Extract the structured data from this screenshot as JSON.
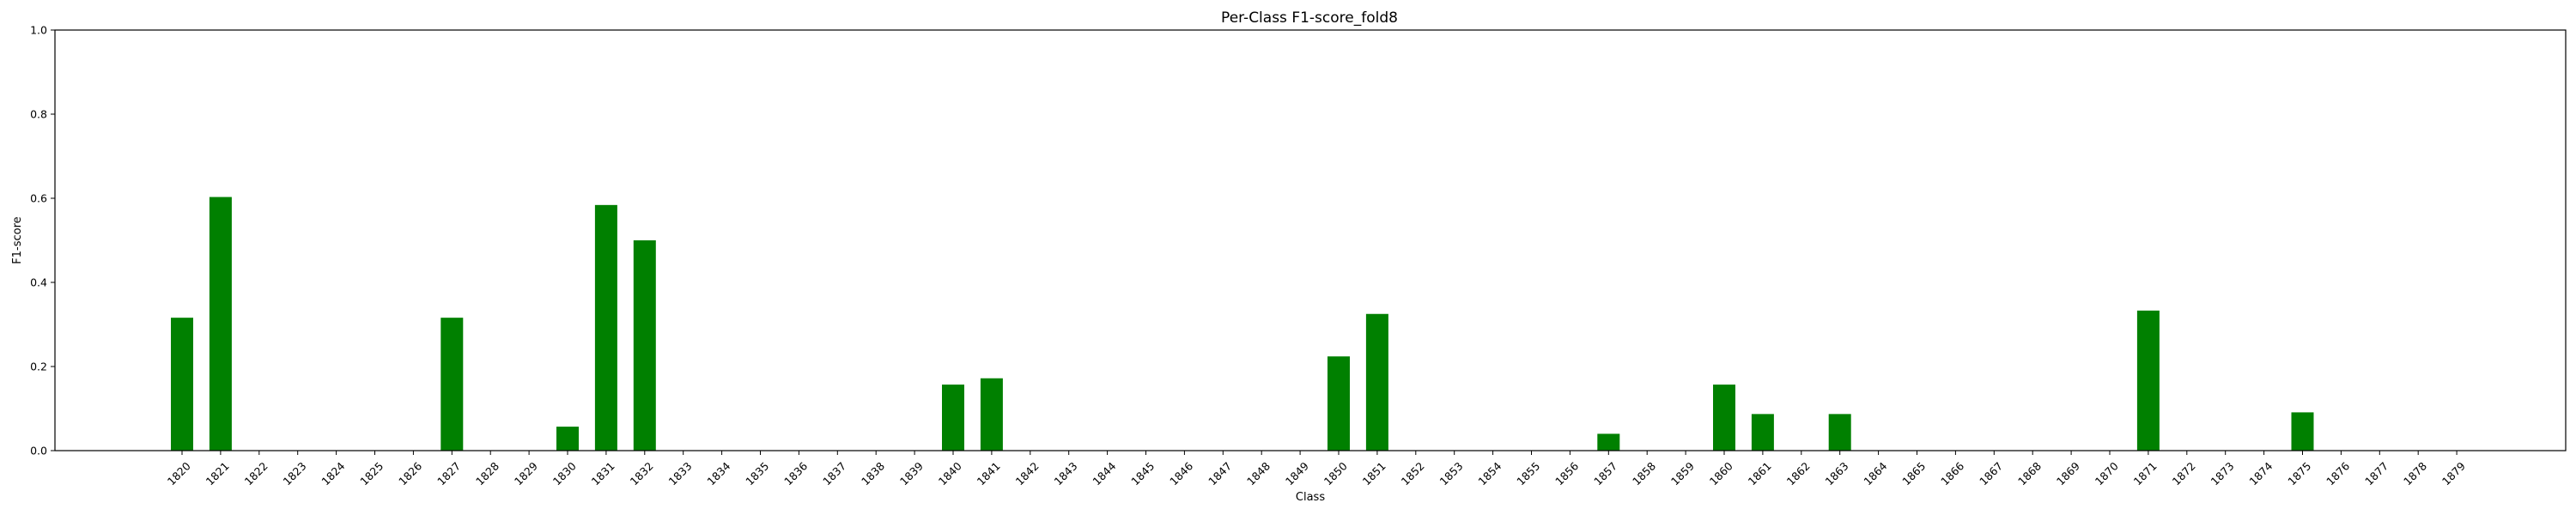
{
  "chart_data": {
    "type": "bar",
    "title": "Per-Class F1-score_fold8",
    "xlabel": "Class",
    "ylabel": "F1-score",
    "ylim": [
      0,
      1.0
    ],
    "yticks": [
      "0.0",
      "0.2",
      "0.4",
      "0.6",
      "0.8",
      "1.0"
    ],
    "grid": false,
    "bar_color": "#008000",
    "categories": [
      "1820",
      "1821",
      "1822",
      "1823",
      "1824",
      "1825",
      "1826",
      "1827",
      "1828",
      "1829",
      "1830",
      "1831",
      "1832",
      "1833",
      "1834",
      "1835",
      "1836",
      "1837",
      "1838",
      "1839",
      "1840",
      "1841",
      "1842",
      "1843",
      "1844",
      "1845",
      "1846",
      "1847",
      "1848",
      "1849",
      "1850",
      "1851",
      "1852",
      "1853",
      "1854",
      "1855",
      "1856",
      "1857",
      "1858",
      "1859",
      "1860",
      "1861",
      "1862",
      "1863",
      "1864",
      "1865",
      "1866",
      "1867",
      "1868",
      "1869",
      "1870",
      "1871",
      "1872",
      "1873",
      "1874",
      "1875",
      "1876",
      "1877",
      "1878",
      "1879"
    ],
    "values": [
      0.316,
      0.603,
      0,
      0,
      0,
      0,
      0,
      0.316,
      0,
      0,
      0.057,
      0.584,
      0.5,
      0,
      0,
      0,
      0,
      0,
      0,
      0,
      0.157,
      0.172,
      0,
      0,
      0,
      0,
      0,
      0,
      0,
      0,
      0.224,
      0.325,
      0,
      0,
      0,
      0,
      0,
      0.04,
      0,
      0,
      0.157,
      0.087,
      0,
      0.087,
      0,
      0,
      0,
      0,
      0,
      0,
      0,
      0.333,
      0,
      0,
      0,
      0.091,
      0,
      0,
      0,
      0
    ]
  }
}
